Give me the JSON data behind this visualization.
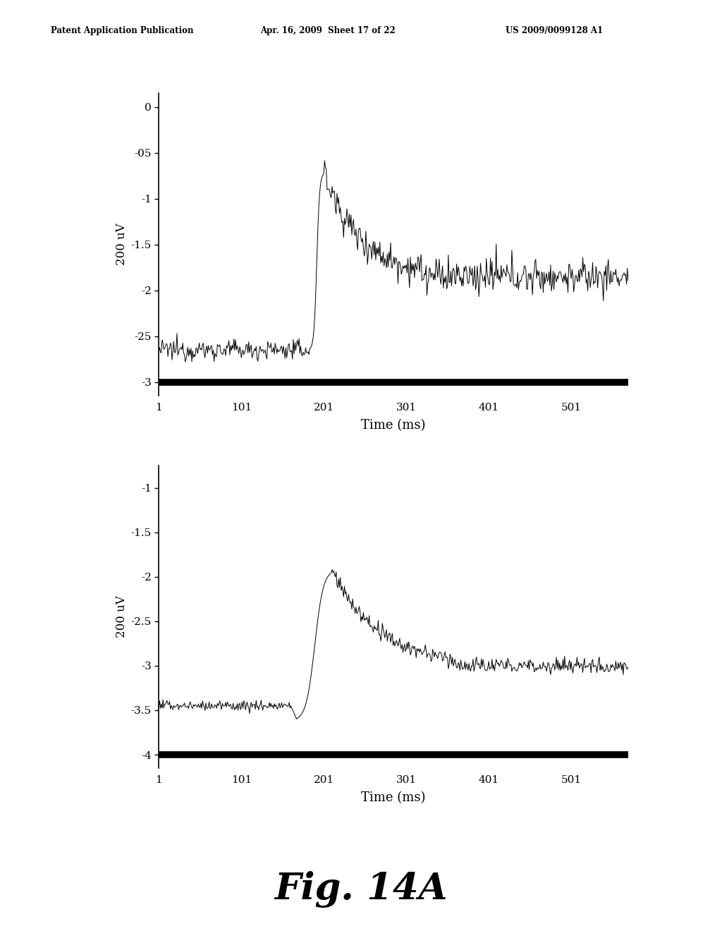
{
  "header_left": "Patent Application Publication",
  "header_center": "Apr. 16, 2009  Sheet 17 of 22",
  "header_right": "US 2009/0099128 A1",
  "figure_label": "Fig. 14A",
  "background_color": "#ffffff",
  "plot1": {
    "ylabel": "200 uV",
    "xlabel": "Time (ms)",
    "yticks": [
      0,
      -0.5,
      -1,
      -1.5,
      -2,
      -2.5,
      -3
    ],
    "ytick_labels": [
      "0",
      "-05",
      "-1",
      "-1.5",
      "-2",
      "-25",
      "-3"
    ],
    "xticks": [
      1,
      101,
      201,
      301,
      401,
      501
    ],
    "ylim": [
      -3.15,
      0.15
    ],
    "xlim": [
      1,
      570
    ],
    "baseline_y": -3.0,
    "pre_y_level": -2.65,
    "peak_x": 200,
    "peak_y": -0.72,
    "post_y_level": -1.85,
    "noise_amplitude_pre": 0.055,
    "noise_amplitude_post": 0.09
  },
  "plot2": {
    "ylabel": "200 uV",
    "xlabel": "Time (ms)",
    "yticks": [
      -1,
      -1.5,
      -2,
      -2.5,
      -3,
      -3.5,
      -4
    ],
    "ytick_labels": [
      "-1",
      "-1.5",
      "-2",
      "-2.5",
      "-3",
      "-3.5",
      "-4"
    ],
    "xticks": [
      1,
      101,
      201,
      301,
      401,
      501
    ],
    "ylim": [
      -4.15,
      -0.75
    ],
    "xlim": [
      1,
      570
    ],
    "baseline_y": -4.0,
    "pre_y_level": -3.45,
    "trough_y": -3.62,
    "peak_x": 210,
    "peak_y": -1.92,
    "post_y_level": -3.0,
    "noise_amplitude_pre": 0.03,
    "noise_amplitude_post": 0.045
  }
}
